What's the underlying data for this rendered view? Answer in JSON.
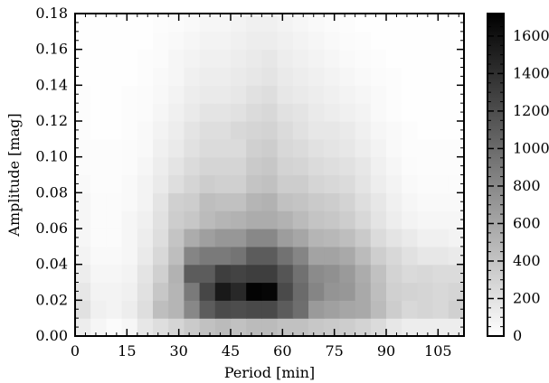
{
  "chart_data": {
    "type": "heatmap",
    "xlabel": "Period [min]",
    "ylabel": "Amplitude [mag]",
    "xlim": [
      0,
      112.5
    ],
    "ylim": [
      0,
      0.18
    ],
    "x_ticks": [
      0,
      15,
      30,
      45,
      60,
      75,
      90,
      105
    ],
    "x_tick_labels": [
      "0",
      "15",
      "30",
      "45",
      "60",
      "75",
      "90",
      "105"
    ],
    "y_ticks": [
      0,
      0.02,
      0.04,
      0.06,
      0.08,
      0.1,
      0.12,
      0.14,
      0.16,
      0.18
    ],
    "y_tick_labels": [
      "0.00",
      "0.02",
      "0.04",
      "0.06",
      "0.08",
      "0.10",
      "0.12",
      "0.14",
      "0.16",
      "0.18"
    ],
    "x_bin_edges": [
      0,
      4.5,
      9,
      13.5,
      18,
      22.5,
      27,
      31.5,
      36,
      40.5,
      45,
      49.5,
      54,
      58.5,
      63,
      67.5,
      72,
      76.5,
      81,
      85.5,
      90,
      94.5,
      99,
      103.5,
      108,
      112.5
    ],
    "y_bin_edges": [
      0,
      0.01,
      0.02,
      0.03,
      0.04,
      0.05,
      0.06,
      0.07,
      0.08,
      0.09,
      0.1,
      0.11,
      0.12,
      0.13,
      0.14,
      0.15,
      0.16,
      0.17,
      0.18
    ],
    "counts": [
      [
        120,
        60,
        30,
        60,
        160,
        220,
        280,
        360,
        420,
        460,
        420,
        460,
        460,
        420,
        420,
        380,
        360,
        340,
        300,
        240,
        160,
        120,
        120,
        120,
        120
      ],
      [
        200,
        100,
        80,
        120,
        220,
        440,
        500,
        800,
        1100,
        1220,
        1200,
        1230,
        1230,
        1100,
        980,
        680,
        640,
        600,
        580,
        460,
        340,
        260,
        280,
        260,
        320
      ],
      [
        160,
        80,
        80,
        100,
        200,
        380,
        500,
        900,
        1250,
        1550,
        1450,
        1700,
        1680,
        1220,
        1000,
        820,
        720,
        700,
        580,
        440,
        320,
        300,
        280,
        260,
        280
      ],
      [
        120,
        60,
        60,
        80,
        180,
        320,
        520,
        1100,
        1100,
        1300,
        1270,
        1300,
        1300,
        1150,
        960,
        780,
        750,
        680,
        560,
        420,
        300,
        250,
        260,
        240,
        240
      ],
      [
        80,
        40,
        40,
        60,
        140,
        260,
        440,
        820,
        900,
        900,
        940,
        1100,
        1100,
        950,
        820,
        620,
        620,
        580,
        460,
        330,
        260,
        200,
        160,
        160,
        140
      ],
      [
        60,
        30,
        30,
        60,
        120,
        220,
        400,
        560,
        650,
        700,
        700,
        800,
        800,
        660,
        600,
        500,
        480,
        440,
        360,
        240,
        180,
        140,
        100,
        100,
        80
      ],
      [
        60,
        30,
        30,
        60,
        100,
        200,
        340,
        380,
        460,
        500,
        520,
        560,
        560,
        520,
        460,
        400,
        380,
        340,
        260,
        180,
        120,
        80,
        60,
        60,
        60
      ],
      [
        60,
        30,
        30,
        40,
        80,
        180,
        320,
        340,
        440,
        420,
        420,
        500,
        520,
        420,
        400,
        360,
        340,
        300,
        220,
        160,
        100,
        60,
        40,
        40,
        40
      ],
      [
        40,
        20,
        20,
        40,
        80,
        140,
        220,
        280,
        340,
        320,
        320,
        400,
        420,
        340,
        340,
        280,
        260,
        240,
        180,
        120,
        80,
        40,
        30,
        30,
        30
      ],
      [
        30,
        20,
        20,
        30,
        60,
        120,
        180,
        240,
        280,
        280,
        280,
        360,
        380,
        300,
        280,
        240,
        220,
        200,
        160,
        100,
        60,
        30,
        20,
        20,
        20
      ],
      [
        30,
        20,
        20,
        30,
        40,
        100,
        140,
        200,
        240,
        240,
        240,
        320,
        340,
        260,
        240,
        200,
        180,
        160,
        120,
        80,
        40,
        20,
        20,
        20,
        20
      ],
      [
        20,
        10,
        10,
        20,
        40,
        80,
        120,
        180,
        220,
        220,
        260,
        280,
        300,
        240,
        200,
        160,
        160,
        140,
        100,
        60,
        40,
        20,
        10,
        10,
        10
      ],
      [
        20,
        10,
        10,
        20,
        30,
        60,
        100,
        140,
        180,
        180,
        200,
        240,
        260,
        200,
        180,
        140,
        120,
        100,
        80,
        40,
        20,
        10,
        10,
        10,
        10
      ],
      [
        20,
        10,
        10,
        20,
        30,
        50,
        80,
        120,
        140,
        140,
        160,
        200,
        220,
        160,
        140,
        120,
        100,
        80,
        60,
        40,
        20,
        10,
        10,
        10,
        10
      ],
      [
        10,
        10,
        10,
        10,
        20,
        40,
        60,
        100,
        120,
        120,
        140,
        160,
        180,
        140,
        120,
        100,
        80,
        60,
        40,
        30,
        20,
        10,
        10,
        10,
        10
      ],
      [
        10,
        10,
        10,
        10,
        20,
        30,
        60,
        80,
        100,
        100,
        120,
        140,
        160,
        120,
        100,
        80,
        60,
        40,
        30,
        20,
        10,
        10,
        10,
        10,
        10
      ],
      [
        10,
        10,
        10,
        10,
        10,
        30,
        40,
        60,
        80,
        80,
        100,
        120,
        120,
        100,
        80,
        60,
        40,
        30,
        20,
        10,
        10,
        10,
        10,
        10,
        10
      ],
      [
        10,
        10,
        10,
        10,
        10,
        20,
        30,
        40,
        60,
        60,
        80,
        100,
        100,
        80,
        60,
        40,
        30,
        20,
        10,
        10,
        10,
        10,
        10,
        10,
        10
      ]
    ],
    "colorbar": {
      "min": 0,
      "max": 1720,
      "colormap": "Greys",
      "low_color": "#ffffff",
      "high_color": "#000000",
      "ticks": [
        0,
        200,
        400,
        600,
        800,
        1000,
        1200,
        1400,
        1600
      ],
      "tick_labels": [
        "0",
        "200",
        "400",
        "600",
        "800",
        "1000",
        "1200",
        "1400",
        "1600"
      ]
    },
    "grid": false,
    "legend": "none"
  }
}
